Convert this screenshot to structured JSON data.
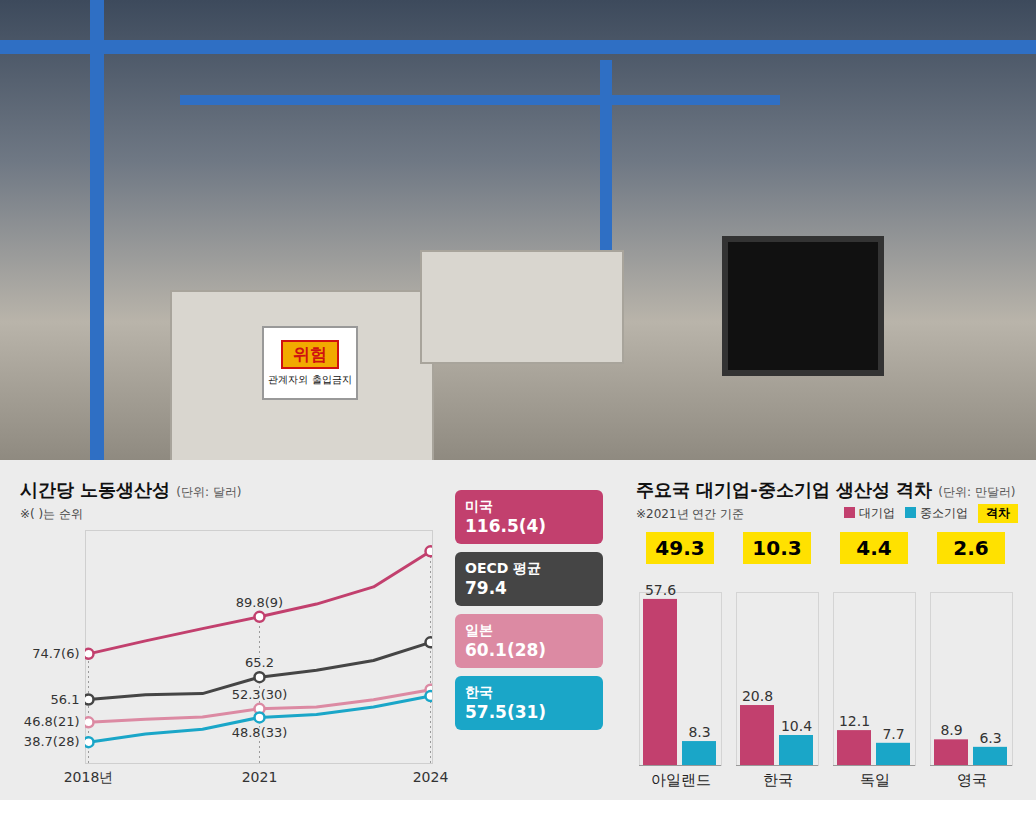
{
  "photo": {
    "sign": {
      "title": "위험",
      "text": "관계자외 출입금지"
    }
  },
  "chart_data": [
    {
      "type": "line",
      "title": "시간당 노동생산성",
      "subtitle": "(단위: 달러)",
      "note": "※( )는 순위",
      "categories": [
        "2018년",
        null,
        null,
        "2021",
        null,
        null,
        "2024"
      ],
      "series": [
        {
          "name": "미국",
          "color": "#c2406e",
          "values": [
            74.7,
            80,
            85,
            89.8,
            95,
            102,
            116.5
          ],
          "value_labels": [
            "74.7(6)",
            null,
            null,
            "89.8(9)",
            null,
            null,
            "116.5(4)"
          ]
        },
        {
          "name": "OECD 평균",
          "color": "#454545",
          "values": [
            56.1,
            58,
            58.5,
            65.2,
            68,
            72,
            79.4
          ],
          "value_labels": [
            "56.1",
            null,
            null,
            "65.2",
            null,
            null,
            "79.4"
          ]
        },
        {
          "name": "일본",
          "color": "#dc8aa3",
          "values": [
            46.8,
            48,
            49,
            52.3,
            53,
            56,
            60.1
          ],
          "value_labels": [
            "46.8(21)",
            null,
            null,
            "52.3(30)",
            null,
            null,
            "60.1(28)"
          ]
        },
        {
          "name": "한국",
          "color": "#1aa6c8",
          "values": [
            38.7,
            42,
            44,
            48.8,
            50,
            53,
            57.5
          ],
          "value_labels": [
            "38.7(28)",
            null,
            null,
            "48.8(33)",
            null,
            null,
            "57.5(31)"
          ]
        }
      ],
      "ylim": [
        30,
        125
      ],
      "yticks": [],
      "grid": false,
      "tick_labels": "x",
      "legend": "right",
      "marker": "circle",
      "data_labels": true
    },
    {
      "type": "bar",
      "title": "주요국 대기업-중소기업 생산성 격차",
      "subtitle": "(단위: 만달러)",
      "note": "※2021년 연간 기준",
      "categories": [
        "아일랜드",
        "한국",
        "독일",
        "영국"
      ],
      "series": [
        {
          "name": "대기업",
          "color": "#c2406e",
          "values": [
            57.6,
            20.8,
            12.1,
            8.9
          ]
        },
        {
          "name": "중소기업",
          "color": "#1aa6c8",
          "values": [
            8.3,
            10.4,
            7.7,
            6.3
          ]
        }
      ],
      "gap": {
        "name": "격차",
        "color": "#ffe100",
        "values": [
          49.3,
          10.3,
          4.4,
          2.6
        ]
      },
      "ylim": [
        0,
        60
      ],
      "yticks": [],
      "grid": false,
      "tick_labels": "x",
      "legend": "top-right",
      "data_labels": true
    }
  ]
}
